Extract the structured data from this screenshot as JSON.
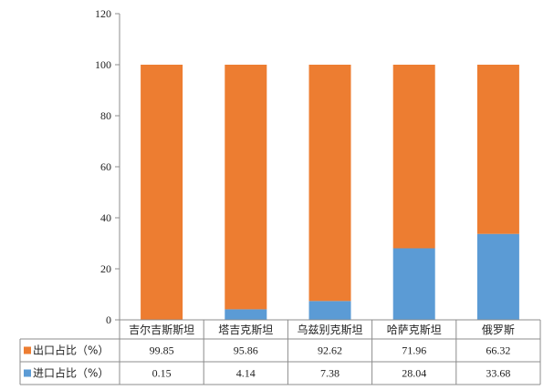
{
  "chart_data": {
    "type": "bar",
    "stacked": true,
    "title": "",
    "xlabel": "",
    "ylabel": "",
    "ylim": [
      0,
      120
    ],
    "yticks": [
      0,
      20,
      40,
      60,
      80,
      100,
      120
    ],
    "grid": false,
    "legend_placement": "data-table-rows",
    "categories": [
      "吉尔吉斯斯坦",
      "塔吉克斯坦",
      "乌兹别克斯坦",
      "哈萨克斯坦",
      "俄罗斯"
    ],
    "series": [
      {
        "name": "进口占比（%）",
        "color": "#5b9bd5",
        "values": [
          0.15,
          4.14,
          7.38,
          28.04,
          33.68
        ],
        "labels": [
          "0.15",
          "4.14",
          "7.38",
          "28.04",
          "33.68"
        ]
      },
      {
        "name": "出口占比（%）",
        "color": "#ed7d31",
        "values": [
          99.85,
          95.86,
          92.62,
          71.96,
          66.32
        ],
        "labels": [
          "99.85",
          "95.86",
          "92.62",
          "71.96",
          "66.32"
        ]
      }
    ],
    "table_row_order": [
      1,
      0
    ]
  }
}
